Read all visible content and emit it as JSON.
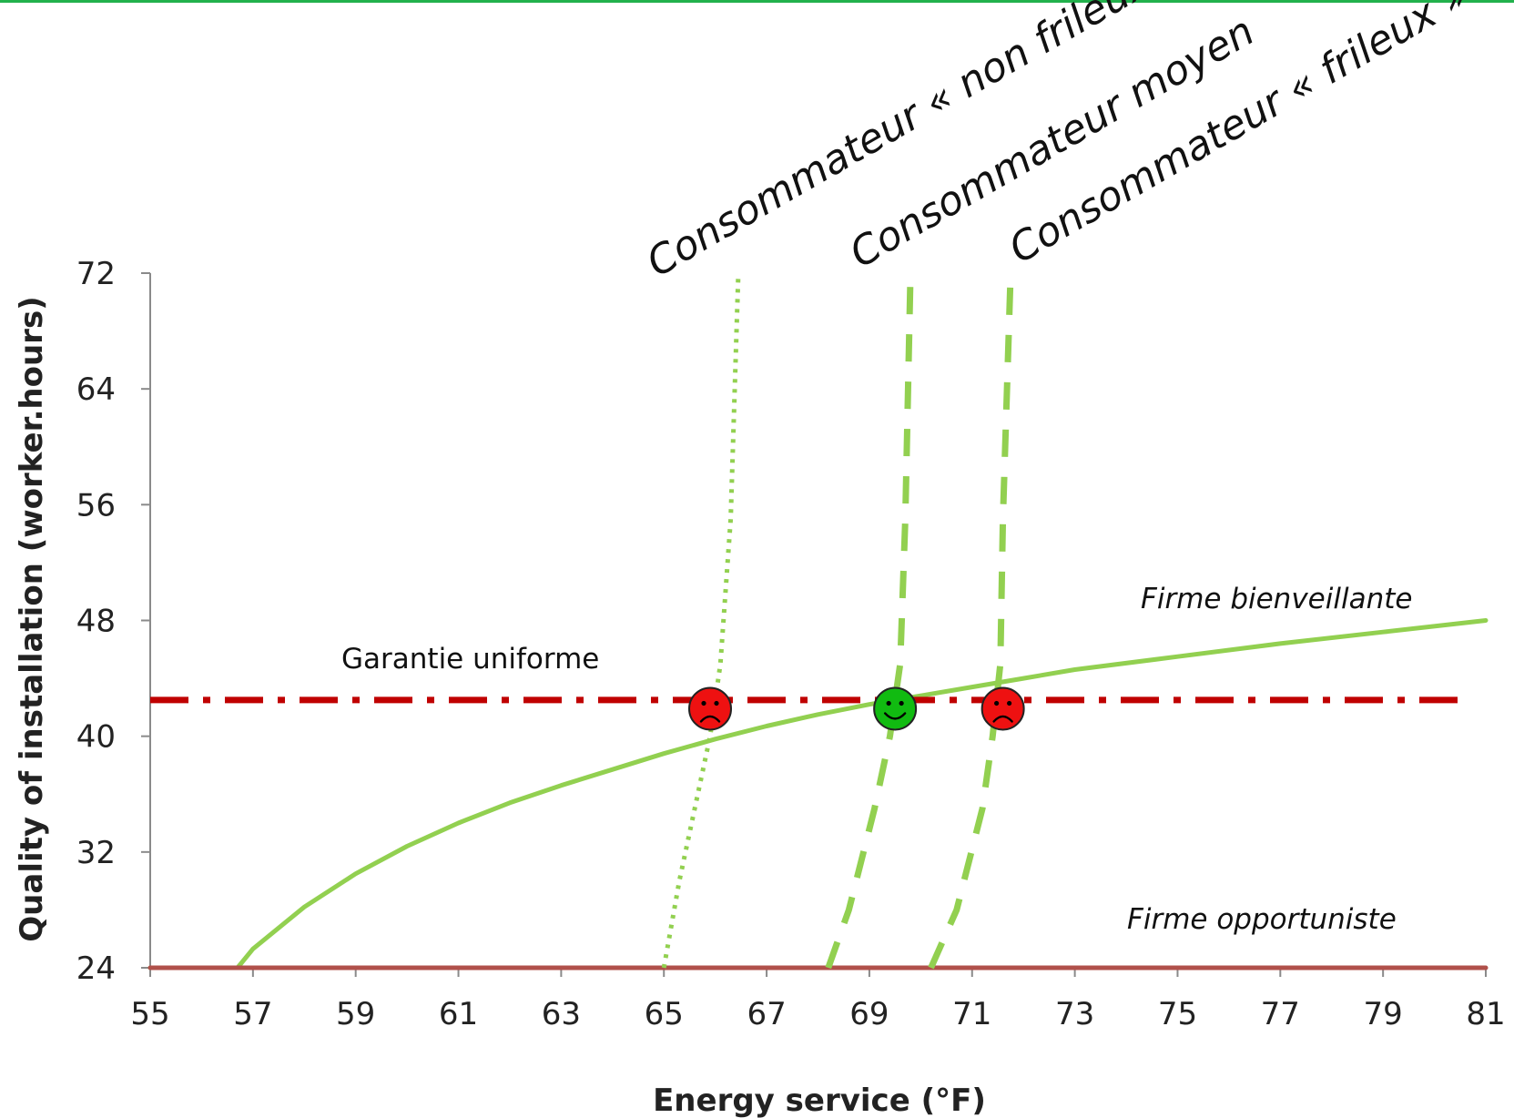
{
  "chart_data": {
    "type": "line",
    "title": "",
    "xlabel": "Energy service (°F)",
    "ylabel": "Quality of installation (worker.hours)",
    "xlim": [
      55,
      81
    ],
    "ylim": [
      24,
      72
    ],
    "x_ticks": [
      "55",
      "57",
      "59",
      "61",
      "63",
      "65",
      "67",
      "69",
      "71",
      "73",
      "75",
      "77",
      "79",
      "81"
    ],
    "y_ticks": [
      "24",
      "32",
      "40",
      "48",
      "56",
      "64",
      "72"
    ],
    "grid": false,
    "colors": {
      "green": "#92d050",
      "dark_red": "#c00000",
      "brown_red": "#b0504a",
      "sad_face": "#ee1111",
      "happy_face": "#11bb11"
    },
    "series": [
      {
        "name": "Firme bienveillante",
        "style": "solid",
        "color": "#92d050",
        "points": [
          [
            55,
            24
          ],
          [
            56.7,
            24
          ],
          [
            57,
            25.3
          ],
          [
            58,
            28.2
          ],
          [
            59,
            30.5
          ],
          [
            60,
            32.4
          ],
          [
            61,
            34.0
          ],
          [
            62,
            35.4
          ],
          [
            63,
            36.6
          ],
          [
            64,
            37.7
          ],
          [
            65,
            38.8
          ],
          [
            66,
            39.8
          ],
          [
            67,
            40.7
          ],
          [
            68,
            41.5
          ],
          [
            69,
            42.2
          ],
          [
            70,
            42.8
          ],
          [
            71,
            43.4
          ],
          [
            72,
            44.0
          ],
          [
            73,
            44.6
          ],
          [
            75,
            45.5
          ],
          [
            77,
            46.4
          ],
          [
            79,
            47.2
          ],
          [
            81,
            48.0
          ]
        ]
      },
      {
        "name": "Firme opportuniste",
        "style": "solid",
        "color": "#b0504a",
        "points": [
          [
            55,
            24
          ],
          [
            81,
            24
          ]
        ]
      },
      {
        "name": "Garantie uniforme",
        "style": "dashdot",
        "color": "#c00000",
        "points": [
          [
            55,
            42.5
          ],
          [
            80.5,
            42.5
          ]
        ]
      },
      {
        "name": "Consommateur « non frileux »",
        "style": "dotted",
        "color": "#92d050",
        "points": [
          [
            65.0,
            24
          ],
          [
            65.3,
            30
          ],
          [
            65.6,
            35
          ],
          [
            65.9,
            40
          ],
          [
            66.1,
            45
          ],
          [
            66.3,
            55
          ],
          [
            66.45,
            72
          ]
        ]
      },
      {
        "name": "Consommateur moyen",
        "style": "dashed",
        "color": "#92d050",
        "points": [
          [
            68.2,
            24
          ],
          [
            68.6,
            28
          ],
          [
            69.1,
            35
          ],
          [
            69.4,
            40
          ],
          [
            69.6,
            45
          ],
          [
            69.7,
            55
          ],
          [
            69.8,
            72
          ]
        ]
      },
      {
        "name": "Consommateur « frileux »",
        "style": "dashed",
        "color": "#92d050",
        "points": [
          [
            70.2,
            24
          ],
          [
            70.7,
            28
          ],
          [
            71.2,
            35
          ],
          [
            71.4,
            40
          ],
          [
            71.55,
            45
          ],
          [
            71.6,
            55
          ],
          [
            71.75,
            72
          ]
        ]
      }
    ],
    "markers": [
      {
        "x": 65.9,
        "y": 41.9,
        "mood": "sad",
        "color": "#ee1111"
      },
      {
        "x": 69.5,
        "y": 41.9,
        "mood": "happy",
        "color": "#11bb11"
      },
      {
        "x": 71.6,
        "y": 41.9,
        "mood": "sad",
        "color": "#ee1111"
      }
    ],
    "annotations": {
      "consumer_non_frileux": "Consommateur « non frileux »",
      "consumer_moyen": "Consommateur moyen",
      "consumer_frileux": "Consommateur « frileux »",
      "firme_bienveillante": "Firme bienveillante",
      "firme_opportuniste": "Firme opportuniste",
      "garantie_uniforme": "Garantie uniforme"
    }
  }
}
